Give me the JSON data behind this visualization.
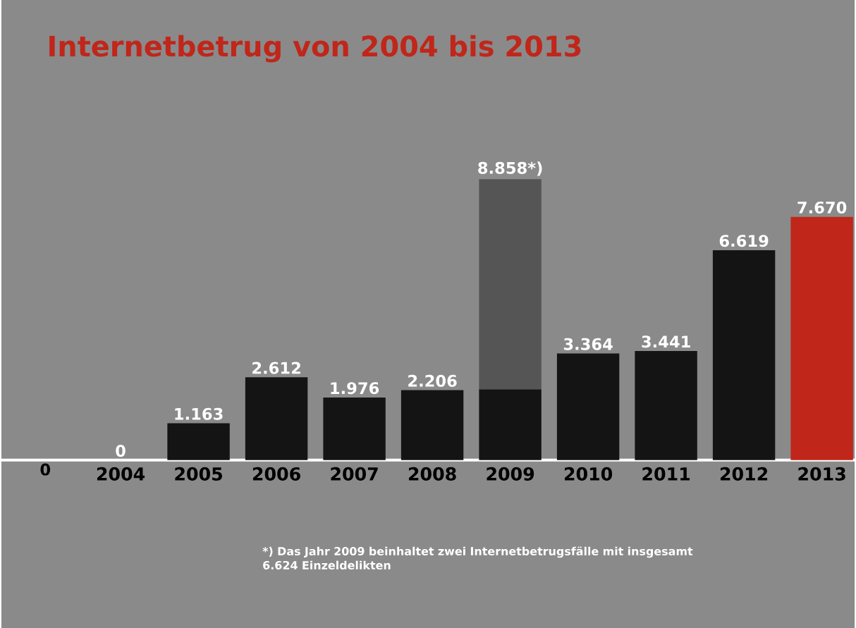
{
  "chart_data": {
    "type": "bar",
    "title": "Internetbetrug von 2004 bis 2013",
    "categories": [
      "2004",
      "2005",
      "2006",
      "2007",
      "2008",
      "2009",
      "2010",
      "2011",
      "2012",
      "2013"
    ],
    "stacked": true,
    "series": [
      {
        "colors": [
          "#141414",
          "#141414",
          "#141414",
          "#141414",
          "#141414",
          "#141414",
          "#141414",
          "#141414",
          "#141414",
          "#c0261a"
        ],
        "values": [
          0,
          1163,
          2612,
          1976,
          2206,
          2234,
          3364,
          3441,
          6619,
          7670
        ],
        "value_labels": [
          "0",
          "1.163",
          "2.612",
          "1.976",
          "2.206",
          null,
          "3.364",
          "3.441",
          "6.619",
          "7.670"
        ]
      },
      {
        "color": "#555555",
        "values": [
          null,
          null,
          null,
          null,
          null,
          6624,
          null,
          null,
          null,
          null
        ]
      }
    ],
    "totals": [
      null,
      null,
      null,
      null,
      null,
      "8.858*)",
      null,
      null,
      null,
      null
    ],
    "annotations": [
      "0",
      "*) Das Jahr 2009 beinhaltet zwei Internetbetrugsfälle mit insgesamt 6.624 Einzeldelikten"
    ]
  }
}
